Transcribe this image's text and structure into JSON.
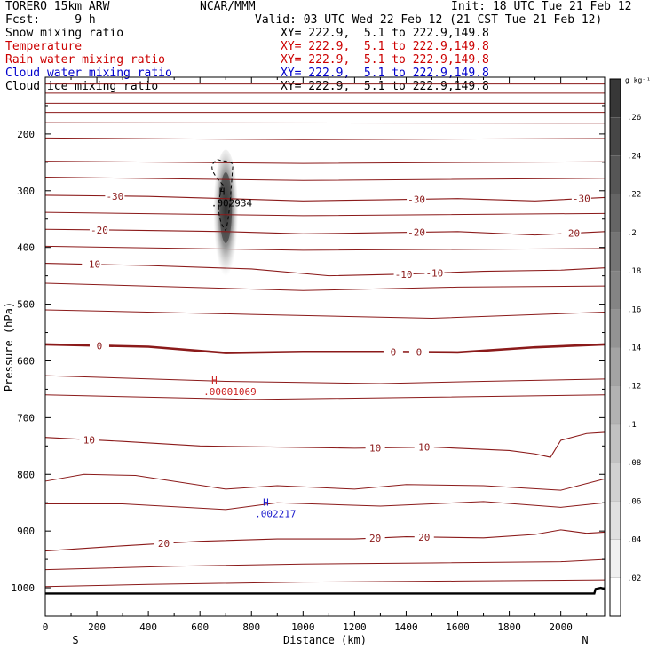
{
  "header": {
    "model": "TORERO  15km ARW",
    "center": "NCAR/MMM",
    "init": "Init: 18 UTC Tue 21 Feb 12",
    "fcst": "Fcst:     9 h",
    "valid": "Valid: 03 UTC Wed 22 Feb 12 (21 CST Tue 21 Feb 12)"
  },
  "fields": [
    {
      "name": "Snow mixing ratio",
      "xy": "XY= 222.9,  5.1 to 222.9,149.8",
      "color": "#000000"
    },
    {
      "name": "Temperature",
      "xy": "XY= 222.9,  5.1 to 222.9,149.8",
      "color": "#cc0000"
    },
    {
      "name": "Rain water mixing ratio",
      "xy": "XY= 222.9,  5.1 to 222.9,149.8",
      "color": "#cc0000"
    },
    {
      "name": "Cloud water mixing ratio",
      "xy": "XY= 222.9,  5.1 to 222.9,149.8",
      "color": "#0000cc"
    },
    {
      "name": "Cloud ice mixing ratio",
      "xy": "XY= 222.9,  5.1 to 222.9,149.8",
      "color": "#000000"
    }
  ],
  "colors": {
    "temperature": "#8b1a1a",
    "rain_label": "#cc2222",
    "cloud_water_label": "#1a1acc",
    "snow_label": "#000000"
  },
  "chart_data": {
    "type": "cross-section",
    "xlabel": "Distance (km)",
    "ylabel": "Pressure (hPa)",
    "xlim": [
      0,
      2170
    ],
    "ylim": [
      1050,
      100
    ],
    "x_ticks": [
      0,
      200,
      400,
      600,
      800,
      1000,
      1200,
      1400,
      1600,
      1800,
      2000
    ],
    "y_ticks": [
      200,
      300,
      400,
      500,
      600,
      700,
      800,
      900,
      1000
    ],
    "direction_left": "S",
    "direction_right": "N",
    "colorbar": {
      "units": "g kg⁻¹",
      "ticks": [
        ".02",
        ".04",
        ".06",
        ".08",
        ".1",
        ".12",
        ".14",
        ".16",
        ".18",
        ".2",
        ".22",
        ".24",
        ".26"
      ],
      "values": [
        0.02,
        0.04,
        0.06,
        0.08,
        0.1,
        0.12,
        0.14,
        0.16,
        0.18,
        0.2,
        0.22,
        0.24,
        0.26
      ]
    },
    "temperature_contours": [
      {
        "value": -30,
        "labels": [
          {
            "text": "-30",
            "x": 270
          },
          {
            "text": "-30",
            "x": 1440
          },
          {
            "text": "-30",
            "x": 2080
          }
        ],
        "points": [
          [
            0,
            308
          ],
          [
            400,
            310
          ],
          [
            700,
            314
          ],
          [
            1000,
            318
          ],
          [
            1300,
            316
          ],
          [
            1600,
            314
          ],
          [
            1900,
            318
          ],
          [
            2170,
            312
          ]
        ]
      },
      {
        "value": -20,
        "labels": [
          {
            "text": "-20",
            "x": 210
          },
          {
            "text": "-20",
            "x": 1440
          },
          {
            "text": "-20",
            "x": 2040
          }
        ],
        "points": [
          [
            0,
            368
          ],
          [
            400,
            370
          ],
          [
            700,
            372
          ],
          [
            1000,
            376
          ],
          [
            1300,
            374
          ],
          [
            1600,
            372
          ],
          [
            1900,
            378
          ],
          [
            2170,
            372
          ]
        ]
      },
      {
        "value": -10,
        "labels": [
          {
            "text": "-10",
            "x": 180
          },
          {
            "text": "-10",
            "x": 1390
          },
          {
            "text": "-10",
            "x": 1510
          }
        ],
        "points": [
          [
            0,
            428
          ],
          [
            400,
            432
          ],
          [
            800,
            438
          ],
          [
            1100,
            450
          ],
          [
            1400,
            447
          ],
          [
            1700,
            442
          ],
          [
            2000,
            440
          ],
          [
            2170,
            436
          ]
        ]
      },
      {
        "value": 0,
        "bold": true,
        "labels": [
          {
            "text": "0",
            "x": 210
          },
          {
            "text": "0",
            "x": 1350
          },
          {
            "text": "0",
            "x": 1450
          }
        ],
        "points": [
          [
            0,
            571
          ],
          [
            400,
            575
          ],
          [
            700,
            586
          ],
          [
            1000,
            584
          ],
          [
            1300,
            584
          ],
          [
            1600,
            585
          ],
          [
            1900,
            576
          ],
          [
            2170,
            571
          ]
        ]
      },
      {
        "value": 10,
        "labels": [
          {
            "text": "10",
            "x": 170
          },
          {
            "text": "10",
            "x": 1280
          },
          {
            "text": "10",
            "x": 1470
          }
        ],
        "points": [
          [
            0,
            735
          ],
          [
            300,
            742
          ],
          [
            600,
            750
          ],
          [
            900,
            752
          ],
          [
            1200,
            754
          ],
          [
            1500,
            752
          ],
          [
            1800,
            758
          ],
          [
            1900,
            764
          ],
          [
            1960,
            770
          ],
          [
            2000,
            740
          ],
          [
            2100,
            728
          ],
          [
            2170,
            726
          ]
        ]
      },
      {
        "value": 20,
        "labels": [
          {
            "text": "20",
            "x": 460
          },
          {
            "text": "20",
            "x": 1280
          },
          {
            "text": "20",
            "x": 1470
          }
        ],
        "points": [
          [
            0,
            935
          ],
          [
            300,
            926
          ],
          [
            600,
            918
          ],
          [
            900,
            914
          ],
          [
            1200,
            914
          ],
          [
            1400,
            910
          ],
          [
            1700,
            912
          ],
          [
            1900,
            906
          ],
          [
            2000,
            898
          ],
          [
            2100,
            904
          ],
          [
            2170,
            902
          ]
        ]
      }
    ],
    "maxima": [
      {
        "field": "Snow mixing ratio",
        "label": "H",
        "value": ".002934",
        "x": 640,
        "p": 307
      },
      {
        "field": "Rain water mixing ratio",
        "label": "H",
        "value": ".00001069",
        "x": 610,
        "p": 640
      },
      {
        "field": "Cloud water mixing ratio",
        "label": "H",
        "value": ".002217",
        "x": 810,
        "p": 855
      }
    ]
  }
}
